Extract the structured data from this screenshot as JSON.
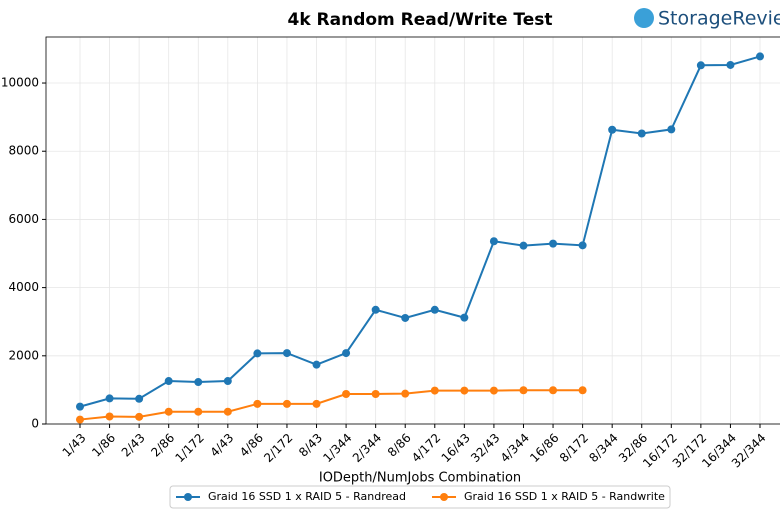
{
  "chart_data": {
    "type": "line",
    "title": "4k Random Read/Write Test",
    "logo": "StorageReview",
    "x_label": "IODepth/NumJobs Combination",
    "categories": [
      "1/43",
      "1/86",
      "2/43",
      "2/86",
      "1/172",
      "4/43",
      "4/86",
      "2/172",
      "8/43",
      "1/344",
      "2/344",
      "8/86",
      "4/172",
      "16/43",
      "32/43",
      "4/344",
      "16/86",
      "8/172",
      "8/344",
      "32/86",
      "16/172",
      "32/172",
      "16/344",
      "32/344"
    ],
    "series": [
      {
        "name": "Graid 16 SSD 1 x RAID 5 - Randread",
        "color": "#1f77b4",
        "values": [
          510,
          750,
          740,
          1260,
          1230,
          1260,
          2070,
          2080,
          1740,
          2080,
          3350,
          3110,
          3350,
          3120,
          5360,
          5230,
          5290,
          5240,
          8630,
          8520,
          8640,
          10520,
          10530,
          10780
        ]
      },
      {
        "name": "Graid 16 SSD 1 x RAID 5 - Randwrite",
        "color": "#ff7f0e",
        "values": [
          130,
          220,
          210,
          360,
          360,
          360,
          590,
          590,
          590,
          880,
          880,
          890,
          980,
          980,
          980,
          990,
          990,
          990,
          null,
          null,
          null,
          null,
          null,
          null
        ]
      }
    ],
    "ylim": [
      0,
      11350
    ],
    "yticks": [
      0,
      2000,
      4000,
      6000,
      8000,
      10000
    ],
    "grid": true,
    "legend": "bottom"
  }
}
